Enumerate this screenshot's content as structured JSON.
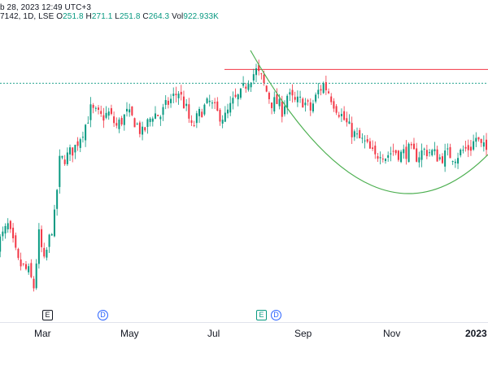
{
  "header": {
    "title_fragment": "b 28, 2023 12:49 UTC+3",
    "meta": "7142, 1D, LSE",
    "ohlc": [
      {
        "key": "O",
        "value": "251.8"
      },
      {
        "key": "H",
        "value": "271.1"
      },
      {
        "key": "L",
        "value": "251.8"
      },
      {
        "key": "C",
        "value": "264.3"
      },
      {
        "key": "Vol",
        "value": "922.933K"
      }
    ]
  },
  "colors": {
    "up": "#089981",
    "down": "#f23645",
    "resistance": "#f23645",
    "support_dotted": "#089981",
    "curve": "#4caf50",
    "dividend": "#2962ff"
  },
  "events": [
    {
      "type": "E",
      "color": "dark"
    },
    {
      "type": "D"
    },
    {
      "type": "E",
      "color": "green"
    },
    {
      "type": "D"
    }
  ],
  "chart_data": {
    "type": "candlestick",
    "x_tick_labels": [
      "Mar",
      "May",
      "Jul",
      "Sep",
      "Nov",
      "2023"
    ],
    "y_range": [
      150,
      300
    ],
    "grid": false,
    "resistance_level": 280,
    "secondary_level": 272.5,
    "rounding_curve": {
      "from": "Jul",
      "bottom": "Nov",
      "to": "2023"
    },
    "anchors": [
      [
        0,
        185
      ],
      [
        4,
        195
      ],
      [
        8,
        175
      ],
      [
        12,
        170
      ],
      [
        14,
        162
      ],
      [
        16,
        190
      ],
      [
        18,
        175
      ],
      [
        20,
        188
      ],
      [
        22,
        200
      ],
      [
        24,
        230
      ],
      [
        27,
        233
      ],
      [
        30,
        238
      ],
      [
        34,
        250
      ],
      [
        36,
        258
      ],
      [
        40,
        254
      ],
      [
        43,
        256
      ],
      [
        46,
        249
      ],
      [
        50,
        256
      ],
      [
        53,
        252
      ],
      [
        56,
        245
      ],
      [
        60,
        256
      ],
      [
        63,
        255
      ],
      [
        66,
        262
      ],
      [
        70,
        268
      ],
      [
        73,
        258
      ],
      [
        75,
        248
      ],
      [
        79,
        258
      ],
      [
        82,
        262
      ],
      [
        85,
        256
      ],
      [
        88,
        254
      ],
      [
        91,
        262
      ],
      [
        94,
        266
      ],
      [
        97,
        275
      ],
      [
        100,
        279
      ],
      [
        102,
        275
      ],
      [
        104,
        268
      ],
      [
        106,
        262
      ],
      [
        108,
        262
      ],
      [
        110,
        258
      ],
      [
        112,
        266
      ],
      [
        115,
        262
      ],
      [
        118,
        263
      ],
      [
        121,
        258
      ],
      [
        124,
        268
      ],
      [
        126,
        272
      ],
      [
        128,
        268
      ],
      [
        130,
        262
      ],
      [
        133,
        255
      ],
      [
        136,
        248
      ],
      [
        139,
        243
      ],
      [
        142,
        240
      ],
      [
        144,
        236
      ],
      [
        146,
        232
      ],
      [
        148,
        236
      ],
      [
        150,
        233
      ],
      [
        153,
        236
      ],
      [
        156,
        234
      ],
      [
        159,
        236
      ],
      [
        162,
        233
      ],
      [
        165,
        236
      ],
      [
        168,
        235
      ],
      [
        171,
        232
      ],
      [
        174,
        234
      ],
      [
        177,
        233
      ],
      [
        180,
        236
      ],
      [
        183,
        238
      ],
      [
        185,
        243
      ],
      [
        187,
        238
      ],
      [
        189,
        236
      ]
    ]
  }
}
